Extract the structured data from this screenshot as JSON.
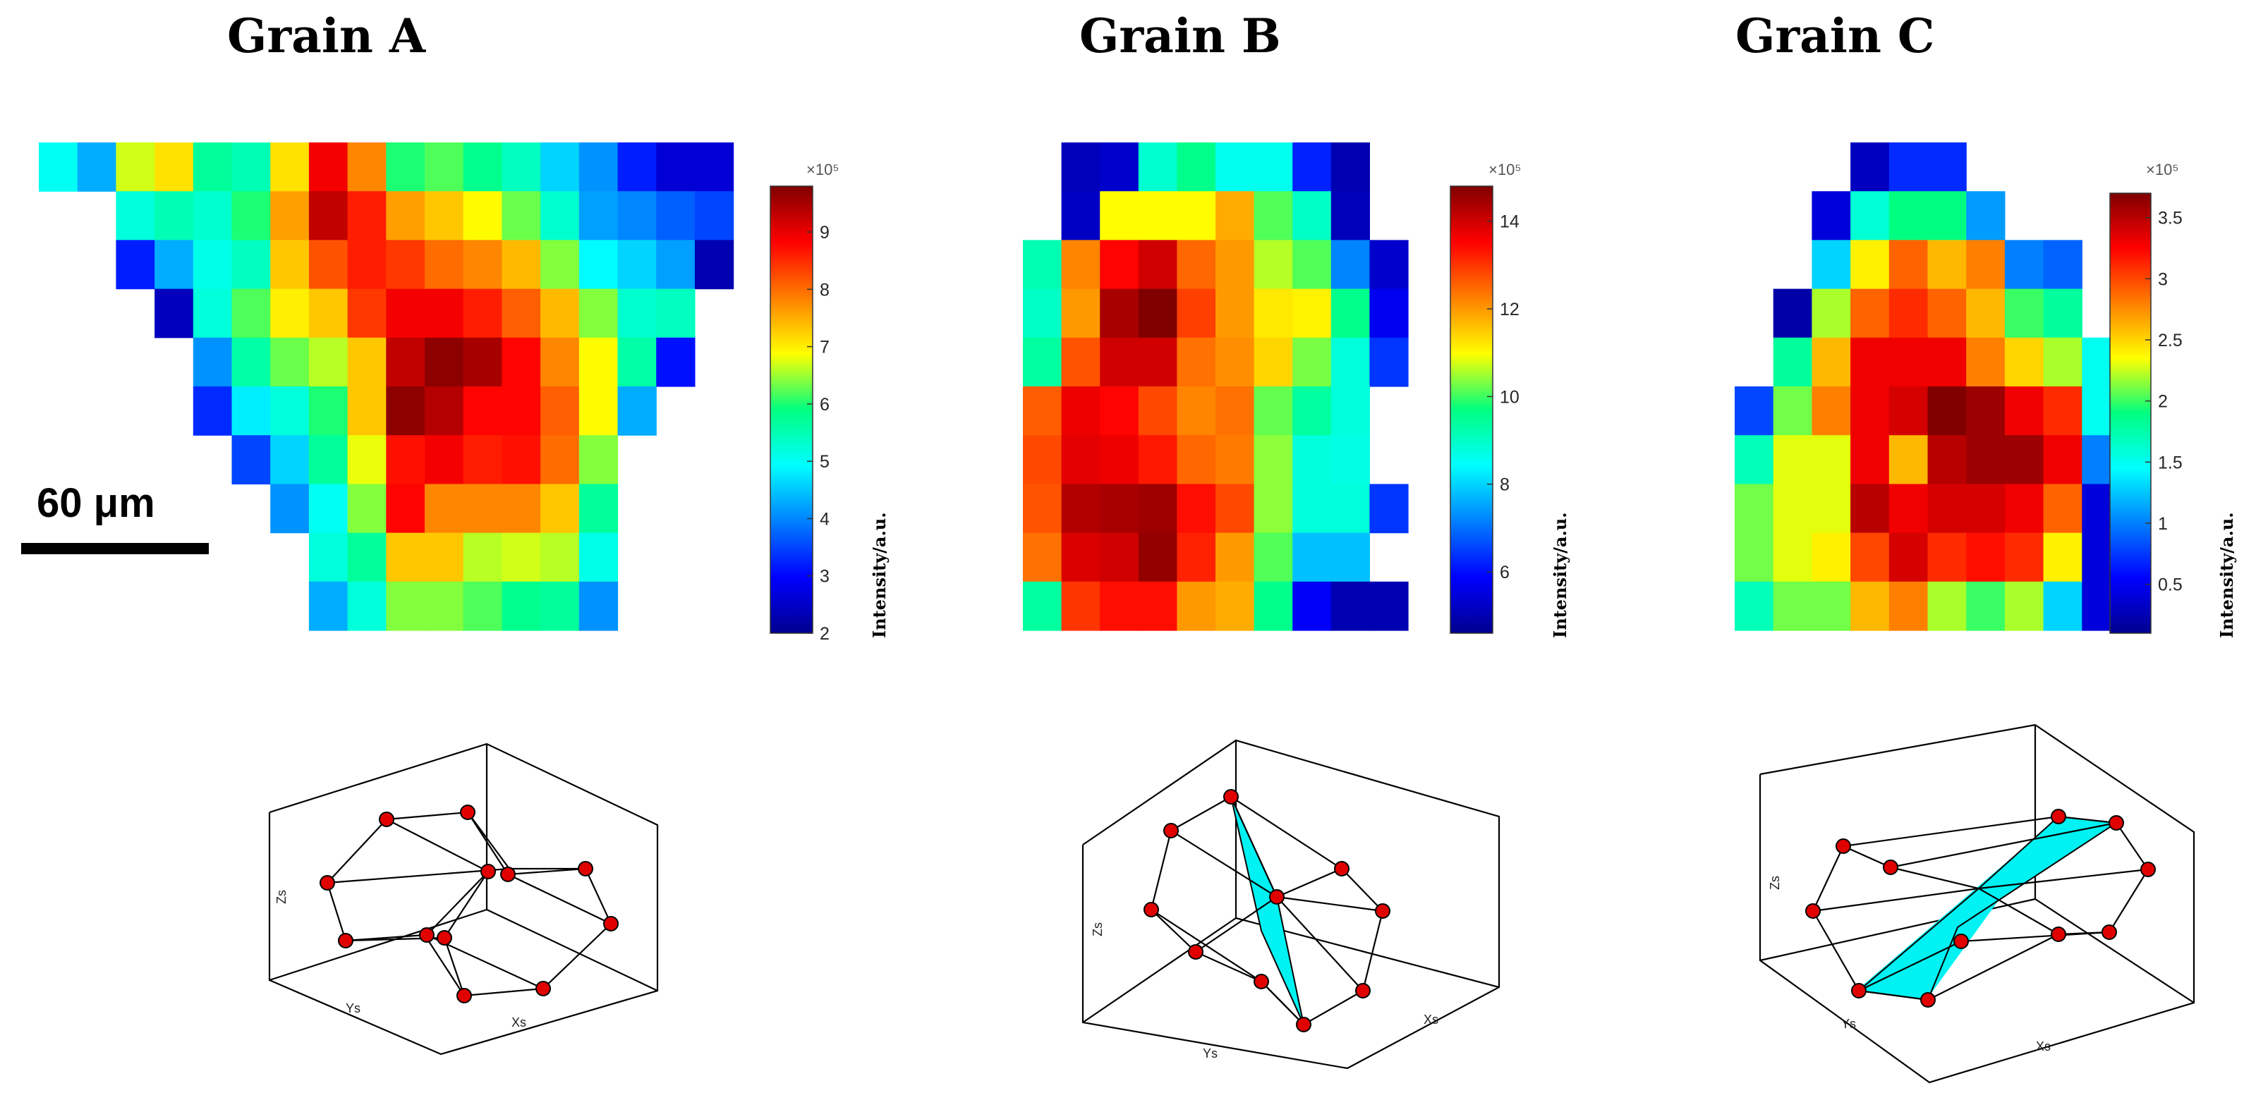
{
  "figure": {
    "scale_bar_label": "60 μm",
    "colorbar_label": "Intensity/a.u.",
    "colorbar_exponent": "×10⁵",
    "axis_labels": {
      "x": "Xs",
      "y": "Ys",
      "z": "Zs"
    },
    "colors": {
      "plane": "#00f2f2",
      "atom": "#e00000"
    }
  },
  "grains": [
    {
      "title": "Grain A",
      "colorbar": {
        "min": 2,
        "max": 9.8,
        "ticks": [
          2,
          3,
          4,
          5,
          6,
          7,
          8,
          9
        ]
      },
      "intensity_grid": [
        [
          5.0,
          4.3,
          6.7,
          7.1,
          5.7,
          5.5,
          7.1,
          8.9,
          7.8,
          6.0,
          6.2,
          5.8,
          5.4,
          4.6,
          4.1,
          3.2,
          2.6,
          2.6
        ],
        [
          null,
          null,
          5.2,
          5.5,
          5.3,
          6.0,
          7.6,
          9.3,
          8.6,
          7.6,
          7.3,
          6.9,
          6.3,
          5.3,
          4.2,
          4.0,
          3.7,
          3.5
        ],
        [
          null,
          null,
          3.2,
          4.3,
          5.1,
          5.4,
          7.3,
          8.2,
          8.6,
          8.4,
          8.0,
          7.8,
          7.4,
          6.4,
          4.9,
          4.6,
          4.2,
          2.3
        ],
        [
          null,
          null,
          null,
          2.4,
          5.2,
          6.2,
          7.0,
          7.3,
          8.4,
          8.9,
          8.9,
          8.6,
          8.1,
          7.4,
          6.4,
          5.3,
          5.4,
          null
        ],
        [
          null,
          null,
          null,
          null,
          4.1,
          5.6,
          6.3,
          6.6,
          7.3,
          9.3,
          9.7,
          9.5,
          8.8,
          7.8,
          6.9,
          5.6,
          3.1,
          null
        ],
        [
          null,
          null,
          null,
          null,
          3.3,
          4.8,
          5.2,
          6.0,
          7.3,
          9.7,
          9.4,
          8.8,
          8.8,
          8.1,
          6.9,
          4.3,
          null,
          null
        ],
        [
          null,
          null,
          null,
          null,
          null,
          3.5,
          4.6,
          5.7,
          6.8,
          8.7,
          8.9,
          8.6,
          8.7,
          8.0,
          6.4,
          null,
          null,
          null
        ],
        [
          null,
          null,
          null,
          null,
          null,
          null,
          4.1,
          5.0,
          6.4,
          8.8,
          7.8,
          7.8,
          7.8,
          7.3,
          5.7,
          null,
          null,
          null
        ],
        [
          null,
          null,
          null,
          null,
          null,
          null,
          null,
          5.2,
          5.7,
          7.3,
          7.3,
          6.6,
          6.7,
          6.6,
          5.1,
          null,
          null,
          null
        ],
        [
          null,
          null,
          null,
          null,
          null,
          null,
          null,
          4.3,
          5.2,
          6.4,
          6.4,
          6.2,
          5.8,
          5.7,
          4.1,
          null,
          null,
          null
        ]
      ]
    },
    {
      "title": "Grain B",
      "colorbar": {
        "min": 4.6,
        "max": 14.8,
        "ticks": [
          6,
          8,
          10,
          12,
          14
        ]
      },
      "intensity_grid": [
        [
          null,
          5.1,
          5.3,
          8.9,
          9.6,
          8.6,
          8.6,
          6.2,
          5.0,
          null
        ],
        [
          null,
          5.2,
          11.0,
          11.0,
          11.0,
          11.8,
          10.1,
          9.0,
          5.1,
          null
        ],
        [
          9.2,
          12.2,
          13.5,
          14.0,
          12.5,
          12.0,
          10.6,
          10.1,
          7.2,
          5.3
        ],
        [
          9.0,
          12.0,
          14.4,
          14.8,
          12.9,
          12.0,
          11.2,
          11.1,
          9.6,
          5.7
        ],
        [
          9.4,
          12.7,
          14.0,
          14.0,
          12.4,
          12.1,
          11.4,
          10.3,
          8.8,
          6.4
        ],
        [
          12.6,
          13.7,
          13.5,
          12.8,
          12.2,
          12.4,
          10.2,
          9.4,
          8.8,
          null
        ],
        [
          12.8,
          13.8,
          13.7,
          13.3,
          12.5,
          12.3,
          10.4,
          8.8,
          8.7,
          null
        ],
        [
          12.7,
          14.3,
          14.4,
          14.5,
          13.4,
          12.8,
          10.4,
          8.8,
          8.8,
          6.4
        ],
        [
          12.4,
          13.9,
          14.0,
          14.6,
          13.2,
          12.0,
          10.1,
          7.8,
          7.8,
          null
        ],
        [
          9.4,
          13.0,
          13.4,
          13.4,
          12.0,
          11.8,
          9.6,
          5.8,
          5.0,
          5.0
        ]
      ]
    },
    {
      "title": "Grain C",
      "colorbar": {
        "min": 0.1,
        "max": 3.7,
        "ticks": [
          0.5,
          1,
          1.5,
          2,
          2.5,
          3,
          3.5
        ]
      },
      "intensity_grid": [
        [
          null,
          null,
          null,
          0.3,
          0.7,
          0.7,
          null,
          null,
          null,
          null
        ],
        [
          null,
          null,
          0.4,
          1.6,
          1.9,
          1.9,
          1.1,
          null,
          null,
          null
        ],
        [
          null,
          null,
          1.3,
          2.4,
          2.9,
          2.6,
          2.8,
          1.0,
          0.9,
          null
        ],
        [
          null,
          0.2,
          2.2,
          2.9,
          3.1,
          2.9,
          2.6,
          2.0,
          1.8,
          null
        ],
        [
          null,
          1.8,
          2.6,
          3.3,
          3.3,
          3.3,
          2.8,
          2.5,
          2.2,
          1.5
        ],
        [
          0.8,
          2.1,
          2.8,
          3.3,
          3.4,
          3.7,
          3.6,
          3.3,
          3.1,
          1.5
        ],
        [
          1.7,
          2.3,
          2.3,
          3.3,
          2.6,
          3.5,
          3.6,
          3.6,
          3.3,
          1.0
        ],
        [
          2.1,
          2.3,
          2.3,
          3.5,
          3.3,
          3.4,
          3.4,
          3.3,
          2.9,
          0.4
        ],
        [
          2.1,
          2.3,
          2.4,
          3.0,
          3.4,
          3.1,
          3.2,
          3.1,
          2.4,
          0.4
        ],
        [
          1.7,
          2.1,
          2.1,
          2.6,
          2.8,
          2.2,
          2.0,
          2.2,
          1.3,
          0.4
        ]
      ]
    }
  ]
}
